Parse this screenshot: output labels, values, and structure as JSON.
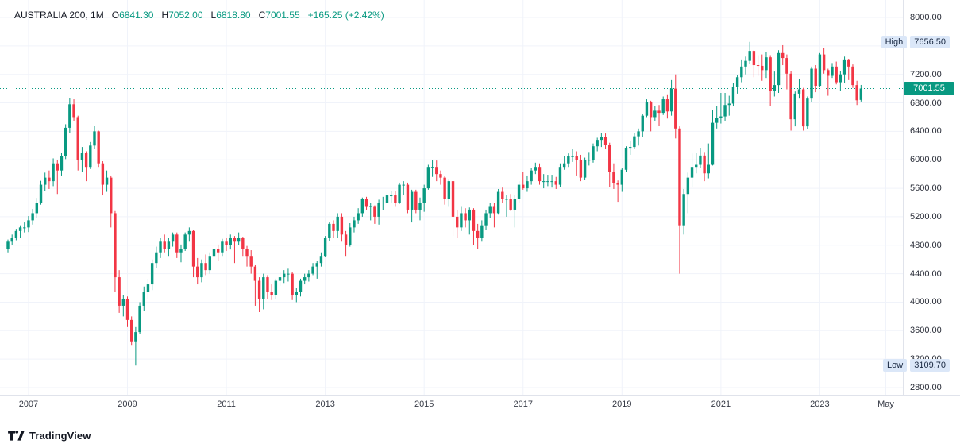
{
  "legend": {
    "title": "AUSTRALIA 200, 1M",
    "ohlc": [
      {
        "label": "O",
        "value": "6841.30"
      },
      {
        "label": "H",
        "value": "7052.00"
      },
      {
        "label": "L",
        "value": "6818.80"
      },
      {
        "label": "C",
        "value": "7001.55"
      }
    ],
    "change": "+165.25 (+2.42%)"
  },
  "colors": {
    "up": "#089981",
    "down": "#f23645",
    "grid": "#f0f3fa",
    "border": "#e0e3eb",
    "axis_text": "#131722",
    "hl_badge_bg": "#dbe7f8",
    "hl_badge_text": "#1a2942",
    "last_badge_bg": "#089981",
    "last_badge_text": "#ffffff"
  },
  "price_axis": {
    "ticks": [
      {
        "label": "8000.00",
        "value": 8000
      },
      {
        "label": "7200.00",
        "value": 7200
      },
      {
        "label": "6800.00",
        "value": 6800
      },
      {
        "label": "6400.00",
        "value": 6400
      },
      {
        "label": "6000.00",
        "value": 6000
      },
      {
        "label": "5600.00",
        "value": 5600
      },
      {
        "label": "5200.00",
        "value": 5200
      },
      {
        "label": "4800.00",
        "value": 4800
      },
      {
        "label": "4400.00",
        "value": 4400
      },
      {
        "label": "4000.00",
        "value": 4000
      },
      {
        "label": "3600.00",
        "value": 3600
      },
      {
        "label": "3200.00",
        "value": 3200
      },
      {
        "label": "2800.00",
        "value": 2800
      }
    ],
    "high": {
      "label": "High",
      "value": "7656.50",
      "price": 7656.5
    },
    "low": {
      "label": "Low",
      "value": "3109.70",
      "price": 3109.7
    },
    "last": {
      "value": "7001.55",
      "price": 7001.55
    }
  },
  "time_axis": {
    "labels": [
      {
        "text": "2007",
        "date": "2007-01"
      },
      {
        "text": "2009",
        "date": "2009-01"
      },
      {
        "text": "2011",
        "date": "2011-01"
      },
      {
        "text": "2013",
        "date": "2013-01"
      },
      {
        "text": "2015",
        "date": "2015-01"
      },
      {
        "text": "2017",
        "date": "2017-01"
      },
      {
        "text": "2019",
        "date": "2019-01"
      },
      {
        "text": "2021",
        "date": "2021-01"
      },
      {
        "text": "2023",
        "date": "2023-01"
      },
      {
        "text": "May",
        "date": "2024-05"
      }
    ]
  },
  "footer": {
    "brand": "TradingView"
  },
  "chart_data": {
    "type": "candlestick",
    "symbol": "AUSTRALIA 200",
    "interval": "1M",
    "title": "AUSTRALIA 200, 1M",
    "start": "2006-08",
    "price_range": {
      "min": 2800,
      "max": 8000,
      "step": 400
    },
    "grid": true,
    "last_close": 7001.55,
    "last_change": "+165.25 (+2.42%)",
    "all_time_high_shown": 7656.5,
    "all_time_low_shown": 3109.7,
    "format": [
      "open",
      "high",
      "low",
      "close"
    ],
    "candles": [
      [
        4750,
        4880,
        4700,
        4850
      ],
      [
        4850,
        4950,
        4800,
        4900
      ],
      [
        4900,
        5030,
        4870,
        5000
      ],
      [
        5000,
        5080,
        4900,
        5050
      ],
      [
        5050,
        5120,
        4980,
        5050
      ],
      [
        5050,
        5210,
        4985,
        5150
      ],
      [
        5150,
        5310,
        5090,
        5250
      ],
      [
        5250,
        5465,
        5180,
        5400
      ],
      [
        5400,
        5705,
        5370,
        5650
      ],
      [
        5650,
        5820,
        5560,
        5750
      ],
      [
        5750,
        5850,
        5590,
        5700
      ],
      [
        5700,
        6020,
        5630,
        5950
      ],
      [
        5950,
        6000,
        5520,
        5850
      ],
      [
        5850,
        6100,
        5780,
        6050
      ],
      [
        6050,
        6500,
        6010,
        6450
      ],
      [
        6450,
        6870,
        6380,
        6780
      ],
      [
        6780,
        6850,
        6550,
        6600
      ],
      [
        6600,
        6620,
        5850,
        6000
      ],
      [
        6000,
        6180,
        5830,
        6100
      ],
      [
        6100,
        6120,
        5700,
        5900
      ],
      [
        5900,
        6250,
        5870,
        6200
      ],
      [
        6200,
        6480,
        6150,
        6400
      ],
      [
        6400,
        6410,
        5900,
        5950
      ],
      [
        5950,
        5980,
        5500,
        5650
      ],
      [
        5650,
        5850,
        5550,
        5750
      ],
      [
        5750,
        5780,
        5050,
        5250
      ],
      [
        5250,
        5280,
        4150,
        4350
      ],
      [
        4350,
        4450,
        3850,
        3950
      ],
      [
        3950,
        4100,
        3800,
        4050
      ],
      [
        4050,
        4080,
        3650,
        3750
      ],
      [
        3750,
        3800,
        3400,
        3450
      ],
      [
        3450,
        3650,
        3109.7,
        3580
      ],
      [
        3580,
        4000,
        3550,
        3950
      ],
      [
        3950,
        4220,
        3880,
        4150
      ],
      [
        4150,
        4330,
        4050,
        4250
      ],
      [
        4250,
        4600,
        4170,
        4550
      ],
      [
        4550,
        4780,
        4480,
        4700
      ],
      [
        4700,
        4900,
        4620,
        4850
      ],
      [
        4850,
        4950,
        4700,
        4750
      ],
      [
        4750,
        4900,
        4650,
        4850
      ],
      [
        4850,
        4980,
        4780,
        4950
      ],
      [
        4950,
        4980,
        4620,
        4700
      ],
      [
        4700,
        4810,
        4560,
        4750
      ],
      [
        4750,
        4980,
        4720,
        4950
      ],
      [
        4950,
        5050,
        4850,
        5000
      ],
      [
        5000,
        5020,
        4350,
        4500
      ],
      [
        4500,
        4620,
        4250,
        4350
      ],
      [
        4350,
        4600,
        4280,
        4550
      ],
      [
        4550,
        4670,
        4380,
        4450
      ],
      [
        4450,
        4700,
        4400,
        4650
      ],
      [
        4650,
        4780,
        4580,
        4750
      ],
      [
        4750,
        4810,
        4580,
        4700
      ],
      [
        4700,
        4890,
        4650,
        4850
      ],
      [
        4850,
        4900,
        4720,
        4800
      ],
      [
        4800,
        4950,
        4740,
        4900
      ],
      [
        4900,
        4930,
        4550,
        4850
      ],
      [
        4850,
        4980,
        4800,
        4900
      ],
      [
        4900,
        4920,
        4650,
        4750
      ],
      [
        4750,
        4790,
        4500,
        4650
      ],
      [
        4650,
        4730,
        4400,
        4500
      ],
      [
        4500,
        4530,
        3950,
        4300
      ],
      [
        4300,
        4350,
        3860,
        4050
      ],
      [
        4050,
        4400,
        3900,
        4350
      ],
      [
        4350,
        4380,
        4050,
        4150
      ],
      [
        4150,
        4250,
        4030,
        4100
      ],
      [
        4100,
        4330,
        4050,
        4300
      ],
      [
        4300,
        4420,
        4230,
        4350
      ],
      [
        4350,
        4450,
        4270,
        4400
      ],
      [
        4400,
        4470,
        4290,
        4400
      ],
      [
        4400,
        4420,
        4030,
        4100
      ],
      [
        4100,
        4200,
        4000,
        4150
      ],
      [
        4150,
        4330,
        4080,
        4300
      ],
      [
        4300,
        4400,
        4250,
        4350
      ],
      [
        4350,
        4450,
        4290,
        4400
      ],
      [
        4400,
        4550,
        4380,
        4500
      ],
      [
        4500,
        4580,
        4330,
        4550
      ],
      [
        4550,
        4700,
        4500,
        4650
      ],
      [
        4650,
        4930,
        4630,
        4900
      ],
      [
        4900,
        5120,
        4860,
        5100
      ],
      [
        5100,
        5150,
        4900,
        5000
      ],
      [
        5000,
        5250,
        4900,
        5200
      ],
      [
        5200,
        5250,
        4850,
        4950
      ],
      [
        4950,
        5000,
        4650,
        4800
      ],
      [
        4800,
        5110,
        4780,
        5050
      ],
      [
        5050,
        5200,
        4980,
        5150
      ],
      [
        5150,
        5320,
        5100,
        5250
      ],
      [
        5250,
        5470,
        5200,
        5450
      ],
      [
        5450,
        5480,
        5300,
        5350
      ],
      [
        5350,
        5400,
        5150,
        5350
      ],
      [
        5350,
        5360,
        5100,
        5200
      ],
      [
        5200,
        5440,
        5090,
        5400
      ],
      [
        5400,
        5480,
        5290,
        5400
      ],
      [
        5400,
        5540,
        5370,
        5500
      ],
      [
        5500,
        5560,
        5400,
        5500
      ],
      [
        5500,
        5560,
        5350,
        5400
      ],
      [
        5400,
        5680,
        5380,
        5650
      ],
      [
        5650,
        5700,
        5500,
        5650
      ],
      [
        5650,
        5680,
        5250,
        5300
      ],
      [
        5300,
        5580,
        5120,
        5550
      ],
      [
        5550,
        5580,
        5250,
        5300
      ],
      [
        5300,
        5470,
        5150,
        5400
      ],
      [
        5400,
        5650,
        5270,
        5600
      ],
      [
        5600,
        5930,
        5580,
        5900
      ],
      [
        5900,
        6000,
        5760,
        5900
      ],
      [
        5900,
        5990,
        5700,
        5800
      ],
      [
        5800,
        5850,
        5650,
        5750
      ],
      [
        5750,
        5770,
        5370,
        5450
      ],
      [
        5450,
        5730,
        5350,
        5700
      ],
      [
        5700,
        5710,
        4930,
        5200
      ],
      [
        5200,
        5300,
        4900,
        5050
      ],
      [
        5050,
        5350,
        5000,
        5250
      ],
      [
        5250,
        5320,
        5050,
        5150
      ],
      [
        5150,
        5330,
        4950,
        5300
      ],
      [
        5300,
        5320,
        4800,
        5000
      ],
      [
        5000,
        5100,
        4750,
        4900
      ],
      [
        4900,
        5150,
        4850,
        5080
      ],
      [
        5080,
        5300,
        5020,
        5250
      ],
      [
        5250,
        5400,
        5180,
        5350
      ],
      [
        5350,
        5390,
        5050,
        5250
      ],
      [
        5250,
        5590,
        5230,
        5550
      ],
      [
        5550,
        5610,
        5400,
        5450
      ],
      [
        5450,
        5500,
        5200,
        5450
      ],
      [
        5450,
        5520,
        5280,
        5300
      ],
      [
        5300,
        5500,
        5050,
        5450
      ],
      [
        5450,
        5700,
        5400,
        5650
      ],
      [
        5650,
        5830,
        5580,
        5600
      ],
      [
        5600,
        5780,
        5550,
        5700
      ],
      [
        5700,
        5880,
        5650,
        5850
      ],
      [
        5850,
        5960,
        5800,
        5900
      ],
      [
        5900,
        5950,
        5650,
        5700
      ],
      [
        5700,
        5800,
        5600,
        5700
      ],
      [
        5700,
        5790,
        5630,
        5700
      ],
      [
        5700,
        5790,
        5610,
        5700
      ],
      [
        5700,
        5760,
        5590,
        5650
      ],
      [
        5650,
        5950,
        5620,
        5900
      ],
      [
        5900,
        6050,
        5860,
        5950
      ],
      [
        5950,
        6090,
        5900,
        6050
      ],
      [
        6050,
        6150,
        5970,
        6050
      ],
      [
        6050,
        6120,
        5780,
        6000
      ],
      [
        6000,
        6070,
        5700,
        5750
      ],
      [
        5750,
        6030,
        5720,
        6000
      ],
      [
        6000,
        6110,
        5920,
        6000
      ],
      [
        6000,
        6230,
        5960,
        6190
      ],
      [
        6190,
        6310,
        6120,
        6280
      ],
      [
        6280,
        6380,
        6180,
        6320
      ],
      [
        6320,
        6370,
        6150,
        6210
      ],
      [
        6210,
        6240,
        5620,
        5830
      ],
      [
        5830,
        5950,
        5590,
        5670
      ],
      [
        5670,
        5710,
        5410,
        5650
      ],
      [
        5650,
        5880,
        5550,
        5860
      ],
      [
        5860,
        6190,
        5830,
        6170
      ],
      [
        6170,
        6260,
        6070,
        6180
      ],
      [
        6180,
        6380,
        6150,
        6330
      ],
      [
        6330,
        6440,
        6200,
        6400
      ],
      [
        6400,
        6650,
        6320,
        6620
      ],
      [
        6620,
        6850,
        6600,
        6810
      ],
      [
        6810,
        6830,
        6400,
        6600
      ],
      [
        6600,
        6760,
        6550,
        6690
      ],
      [
        6690,
        6770,
        6480,
        6660
      ],
      [
        6660,
        6890,
        6630,
        6850
      ],
      [
        6850,
        6920,
        6580,
        6680
      ],
      [
        6680,
        7120,
        6620,
        7000
      ],
      [
        7000,
        7200,
        6300,
        6440
      ],
      [
        6440,
        6470,
        4400,
        5080
      ],
      [
        5080,
        5590,
        4950,
        5520
      ],
      [
        5520,
        5820,
        5250,
        5750
      ],
      [
        5750,
        6090,
        5620,
        5900
      ],
      [
        5900,
        6100,
        5810,
        5930
      ],
      [
        5930,
        6170,
        5880,
        6060
      ],
      [
        6060,
        6110,
        5700,
        5810
      ],
      [
        5810,
        6230,
        5740,
        5930
      ],
      [
        5930,
        6700,
        5920,
        6520
      ],
      [
        6520,
        6760,
        6440,
        6590
      ],
      [
        6590,
        6940,
        6510,
        6610
      ],
      [
        6610,
        6940,
        6550,
        6770
      ],
      [
        6770,
        6900,
        6620,
        6790
      ],
      [
        6790,
        7080,
        6750,
        7020
      ],
      [
        7020,
        7190,
        6930,
        7160
      ],
      [
        7160,
        7410,
        7090,
        7310
      ],
      [
        7310,
        7450,
        7200,
        7390
      ],
      [
        7390,
        7656.5,
        7350,
        7530
      ],
      [
        7530,
        7540,
        7160,
        7330
      ],
      [
        7330,
        7470,
        7180,
        7320
      ],
      [
        7320,
        7480,
        7110,
        7260
      ],
      [
        7260,
        7520,
        7150,
        7440
      ],
      [
        7440,
        7470,
        6760,
        6970
      ],
      [
        6970,
        7240,
        6890,
        7050
      ],
      [
        7050,
        7540,
        6940,
        7500
      ],
      [
        7500,
        7610,
        7330,
        7430
      ],
      [
        7430,
        7480,
        6990,
        7210
      ],
      [
        7210,
        7250,
        6410,
        6570
      ],
      [
        6570,
        6960,
        6470,
        6930
      ],
      [
        6930,
        7140,
        6860,
        6990
      ],
      [
        6990,
        7010,
        6410,
        6470
      ],
      [
        6470,
        6890,
        6430,
        6860
      ],
      [
        6860,
        7310,
        6810,
        7280
      ],
      [
        7280,
        7330,
        6950,
        7040
      ],
      [
        7040,
        7500,
        7020,
        7480
      ],
      [
        7480,
        7570,
        7210,
        7260
      ],
      [
        7260,
        7280,
        6900,
        7180
      ],
      [
        7180,
        7360,
        7150,
        7310
      ],
      [
        7310,
        7380,
        7060,
        7090
      ],
      [
        7090,
        7250,
        6970,
        7200
      ],
      [
        7200,
        7450,
        7080,
        7410
      ],
      [
        7410,
        7420,
        7120,
        7310
      ],
      [
        7310,
        7340,
        7010,
        7050
      ],
      [
        7050,
        7110,
        6770,
        6836.3
      ],
      [
        6841.3,
        7052,
        6818.8,
        7001.55
      ]
    ]
  }
}
